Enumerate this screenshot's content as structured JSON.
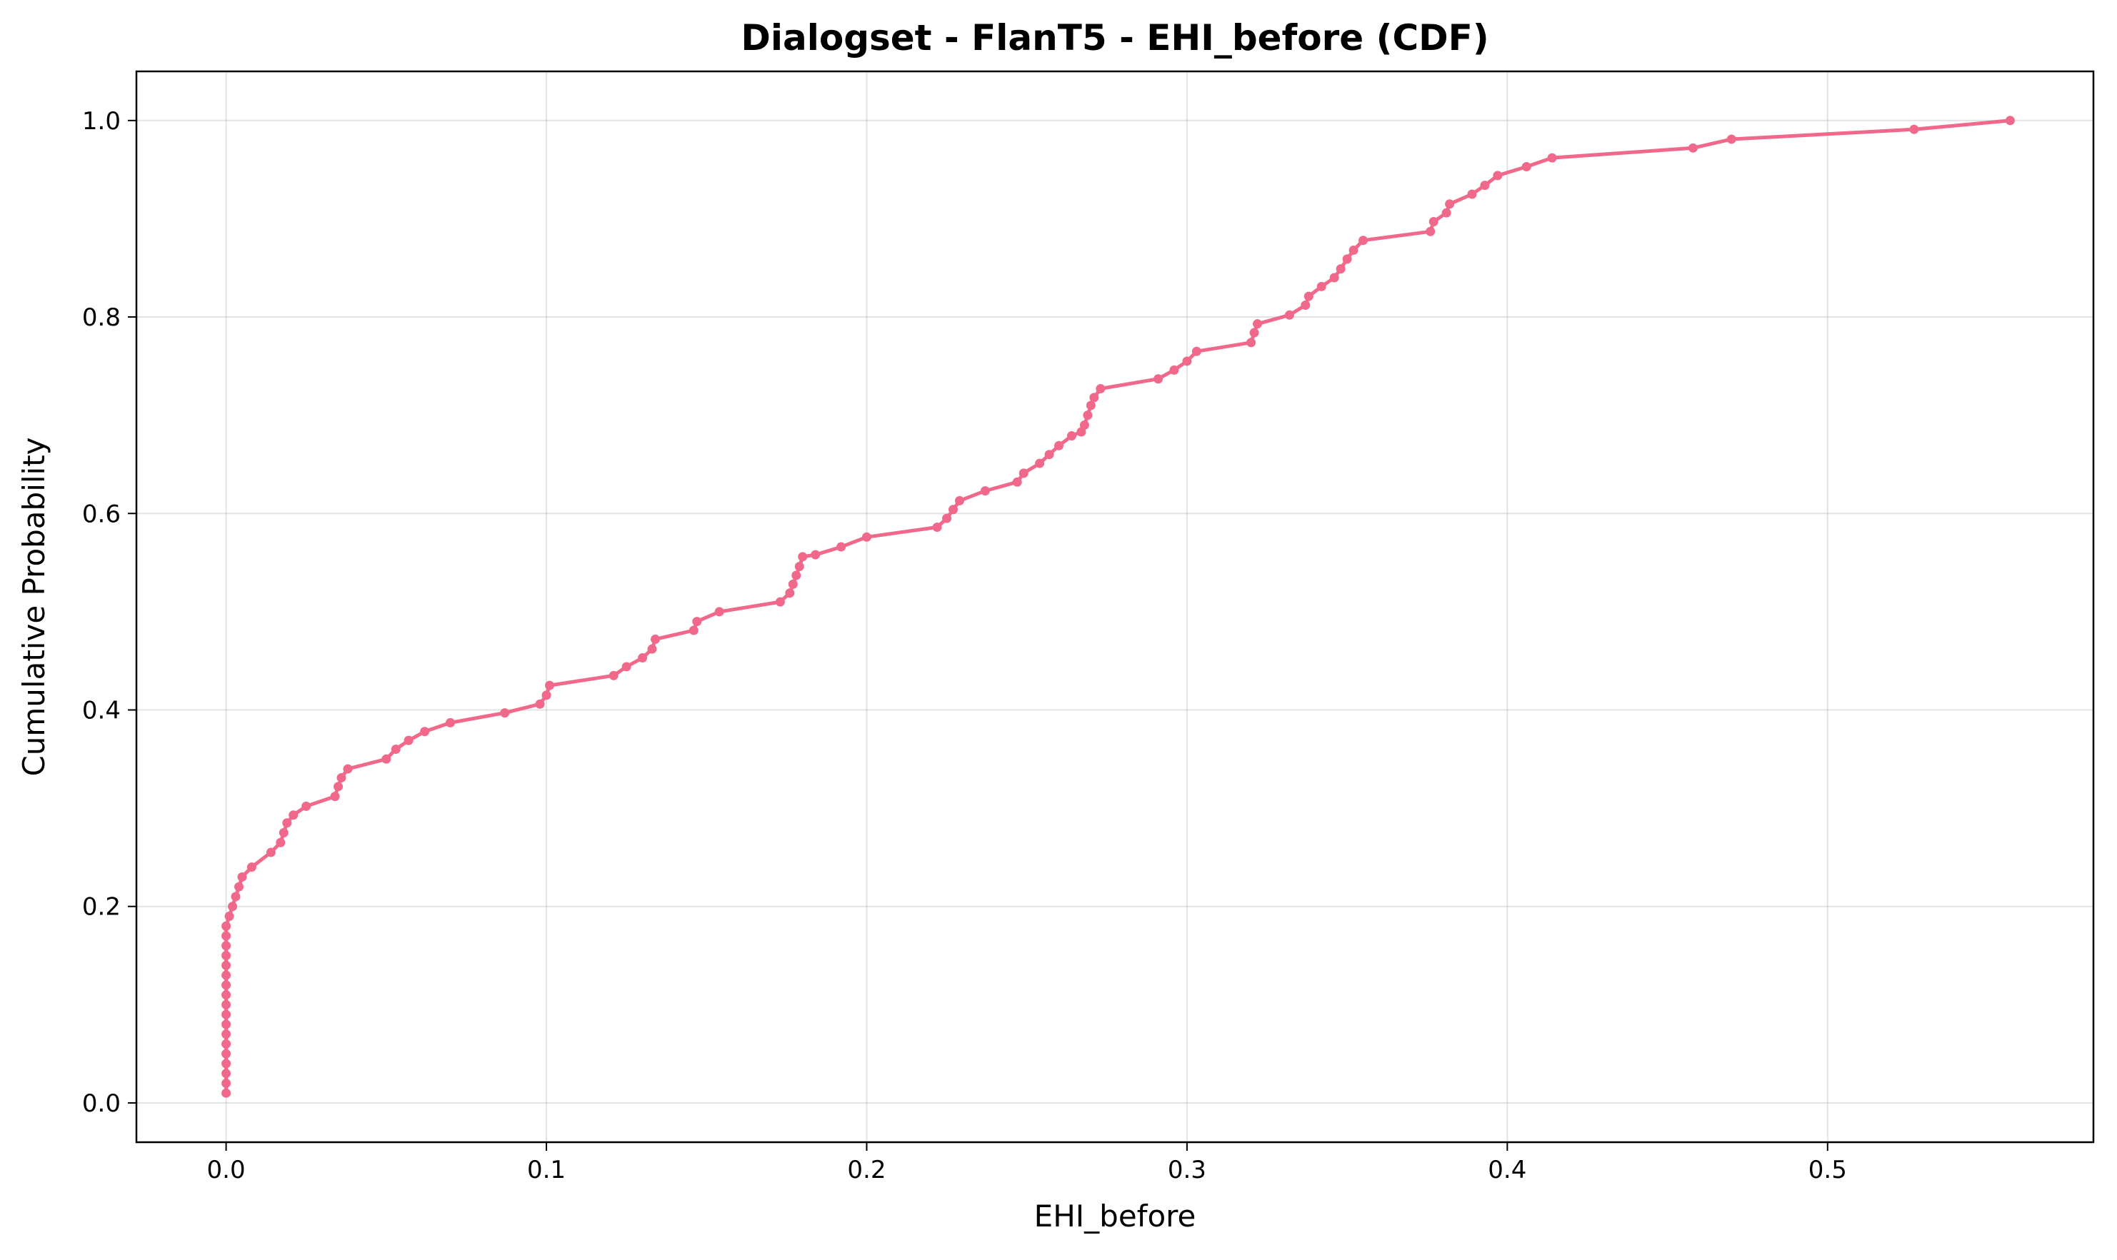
{
  "chart_data": {
    "type": "line",
    "title": "Dialogset - FlanT5 - EHI_before (CDF)",
    "xlabel": "EHI_before",
    "ylabel": "Cumulative Probability",
    "xlim": [
      -0.028,
      0.583
    ],
    "ylim": [
      -0.04,
      1.05
    ],
    "xticks": [
      0.0,
      0.1,
      0.2,
      0.3,
      0.4,
      0.5
    ],
    "xtick_labels": [
      "0.0",
      "0.1",
      "0.2",
      "0.3",
      "0.4",
      "0.5"
    ],
    "yticks": [
      0.0,
      0.2,
      0.4,
      0.6,
      0.8,
      1.0
    ],
    "ytick_labels": [
      "0.0",
      "0.2",
      "0.4",
      "0.6",
      "0.8",
      "1.0"
    ],
    "grid": true,
    "color": "#f0698a",
    "series": [
      {
        "x": [
          0.0,
          0.0,
          0.0,
          0.0,
          0.0,
          0.0,
          0.0,
          0.0,
          0.0,
          0.0,
          0.0,
          0.0,
          0.0,
          0.0,
          0.0,
          0.0,
          0.0,
          0.0,
          0.001,
          0.002,
          0.003,
          0.004,
          0.005,
          0.008,
          0.014,
          0.017,
          0.018,
          0.019,
          0.021,
          0.025,
          0.034,
          0.035,
          0.036,
          0.038,
          0.05,
          0.053,
          0.057,
          0.062,
          0.07,
          0.087,
          0.098,
          0.1,
          0.101,
          0.121,
          0.125,
          0.13,
          0.133,
          0.134,
          0.146,
          0.147,
          0.154,
          0.173,
          0.176,
          0.177,
          0.178,
          0.179,
          0.18,
          0.184,
          0.192,
          0.2,
          0.222,
          0.225,
          0.227,
          0.229,
          0.237,
          0.247,
          0.249,
          0.254,
          0.257,
          0.26,
          0.264,
          0.267,
          0.268,
          0.269,
          0.27,
          0.271,
          0.273,
          0.291,
          0.296,
          0.3,
          0.303,
          0.32,
          0.321,
          0.322,
          0.332,
          0.337,
          0.338,
          0.342,
          0.346,
          0.348,
          0.35,
          0.352,
          0.355,
          0.376,
          0.377,
          0.381,
          0.382,
          0.389,
          0.393,
          0.397,
          0.406,
          0.414,
          0.458,
          0.47,
          0.527,
          0.557
        ],
        "y": [
          0.01,
          0.02,
          0.03,
          0.04,
          0.05,
          0.06,
          0.07,
          0.08,
          0.09,
          0.1,
          0.11,
          0.12,
          0.13,
          0.14,
          0.15,
          0.16,
          0.17,
          0.18,
          0.19,
          0.2,
          0.21,
          0.22,
          0.23,
          0.24,
          0.255,
          0.265,
          0.275,
          0.285,
          0.293,
          0.302,
          0.312,
          0.322,
          0.331,
          0.34,
          0.35,
          0.36,
          0.369,
          0.378,
          0.387,
          0.397,
          0.406,
          0.415,
          0.425,
          0.435,
          0.444,
          0.453,
          0.462,
          0.472,
          0.481,
          0.49,
          0.5,
          0.51,
          0.519,
          0.528,
          0.537,
          0.546,
          0.556,
          0.558,
          0.566,
          0.576,
          0.586,
          0.595,
          0.604,
          0.613,
          0.623,
          0.632,
          0.641,
          0.651,
          0.66,
          0.669,
          0.679,
          0.683,
          0.69,
          0.7,
          0.71,
          0.718,
          0.727,
          0.737,
          0.746,
          0.755,
          0.765,
          0.774,
          0.784,
          0.793,
          0.802,
          0.812,
          0.821,
          0.831,
          0.84,
          0.849,
          0.859,
          0.868,
          0.878,
          0.887,
          0.897,
          0.906,
          0.915,
          0.925,
          0.934,
          0.944,
          0.953,
          0.962,
          0.972,
          0.981,
          0.991,
          1.0
        ]
      }
    ]
  }
}
